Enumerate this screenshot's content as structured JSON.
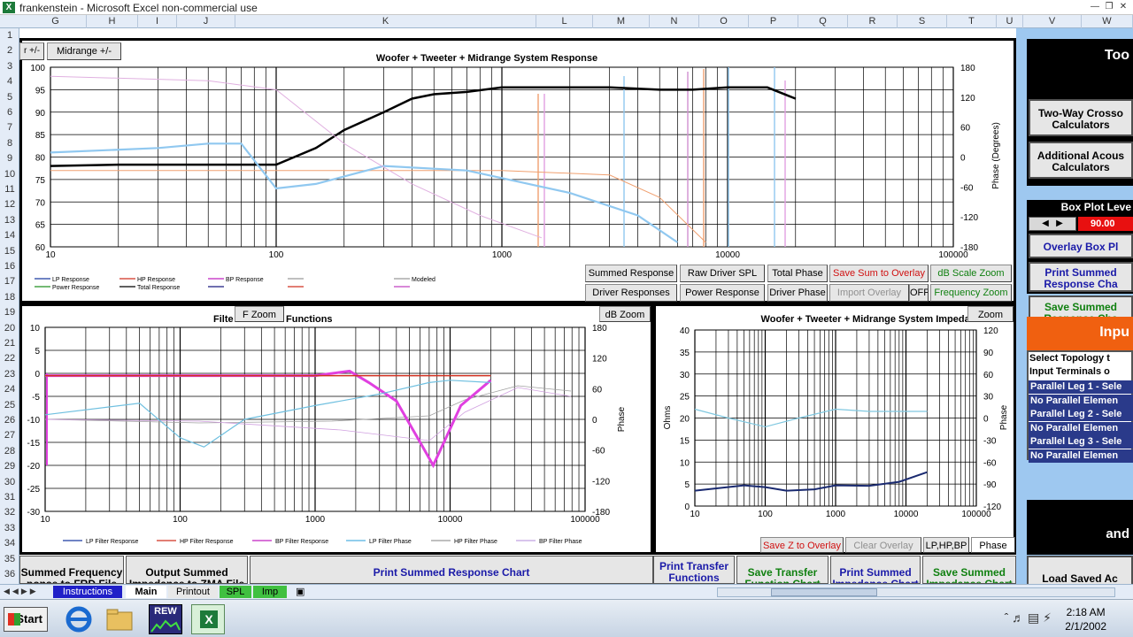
{
  "window": {
    "title": "frankenstein - Microsoft Excel non-commercial use",
    "icon": "excel-icon"
  },
  "columns": [
    "G",
    "H",
    "I",
    "J",
    "K",
    "L",
    "M",
    "N",
    "O",
    "P",
    "Q",
    "R",
    "S",
    "T",
    "U",
    "V",
    "W"
  ],
  "rows": [
    "1",
    "2",
    "3",
    "4",
    "5",
    "6",
    "7",
    "8",
    "9",
    "10",
    "11",
    "12",
    "13",
    "14",
    "15",
    "16",
    "17",
    "18",
    "19",
    "20",
    "21",
    "22",
    "23",
    "24",
    "25",
    "26",
    "27",
    "28",
    "29",
    "30",
    "31",
    "32",
    "33",
    "34",
    "35",
    "36"
  ],
  "top_chart": {
    "title": "Woofer + Tweeter + Midrange  System Response",
    "y_left_ticks": [
      "100",
      "95",
      "90",
      "85",
      "80",
      "75",
      "70",
      "65",
      "60"
    ],
    "y_right_ticks": [
      "180",
      "120",
      "60",
      "0",
      "-60",
      "-120",
      "-180"
    ],
    "y_right_label": "Phase (Degrees)",
    "x_ticks": [
      "10",
      "100",
      "1000",
      "10000",
      "100000"
    ],
    "legend": [
      "LP Response",
      "HP Response",
      "BP Response",
      "",
      "Modeled",
      "Power Response",
      "Total Response",
      "",
      "",
      ""
    ],
    "corner_buttons": [
      "r +/-",
      "Midrange  +/-"
    ],
    "buttons_row1": [
      "Summed Response",
      "Raw Driver SPL",
      "Total Phase",
      "Save Sum to Overlay",
      "dB Scale Zoom"
    ],
    "buttons_row2": [
      "Driver Responses",
      "Power Response",
      "Driver Phase",
      "Import Overlay",
      "OFF",
      "Frequency Zoom"
    ]
  },
  "filter_chart": {
    "title_left": "Filte",
    "title_right": "Functions",
    "zoom_buttons": [
      "F Zoom",
      "dB Zoom"
    ],
    "y_left_ticks": [
      "10",
      "5",
      "0",
      "-5",
      "-10",
      "-15",
      "-20",
      "-25",
      "-30"
    ],
    "y_right_ticks": [
      "180",
      "120",
      "60",
      "0",
      "-60",
      "-120",
      "-180"
    ],
    "y_right_label": "Phase",
    "x_ticks": [
      "10",
      "100",
      "1000",
      "10000",
      "100000"
    ],
    "legend": [
      "LP Filter Response",
      "HP Filter Response",
      "BP Filter Response",
      "LP Filter Phase",
      "HP Filter Phase",
      "BP Filter Phase"
    ]
  },
  "impedance_chart": {
    "title": "Woofer + Tweeter + Midrange  System Impedan",
    "zoom_button": "Zoom",
    "y_left_ticks": [
      "40",
      "35",
      "30",
      "25",
      "20",
      "15",
      "10",
      "5",
      "0"
    ],
    "y_left_label": "Ohms",
    "y_right_ticks": [
      "120",
      "90",
      "60",
      "30",
      "0",
      "-30",
      "-60",
      "-90",
      "-120"
    ],
    "y_right_label": "Phase",
    "x_ticks": [
      "10",
      "100",
      "1000",
      "10000",
      "100000"
    ],
    "buttons": [
      "Save Z to Overlay",
      "Clear Overlay",
      "LP,HP,BP",
      "Phase"
    ]
  },
  "sidebar": {
    "header": "Too",
    "items": [
      "Two-Way Crosso Calculators",
      "Additional Acous Calculators"
    ],
    "box_plot_label": "Box Plot Leve",
    "box_plot_value": "90.00",
    "overlay_btn": "Overlay Box Pl",
    "print_btn": "Print Summed Response Cha",
    "save_btn": "Save Summed Response Cha",
    "input_header": "Inpu",
    "select_topology": "Select Topology t",
    "input_terminals": "Input Terminals o",
    "legs": [
      "Parallel Leg 1 - Sele",
      "No Parallel Elemen",
      "Parallel Leg 2 - Sele",
      "No Parallel Elemen",
      "Parallel Leg 3 - Sele",
      "No Parallel Elemen"
    ],
    "black_box_text": "and",
    "load_saved": "Load Saved Ac"
  },
  "bottom_buttons": [
    {
      "label": "Summed Frequency ponse to FRD File",
      "style": "black"
    },
    {
      "label": "Output Summed Impedance to ZMA File",
      "style": "black"
    },
    {
      "label": "Print Summed Response Chart",
      "style": "blue"
    },
    {
      "label": "Print Transfer Functions",
      "style": "blue"
    },
    {
      "label": "Save Transfer Function Chart",
      "style": "green"
    },
    {
      "label": "Print Summed Impedance Chart",
      "style": "blue"
    },
    {
      "label": "Save Summed Impedance Chart",
      "style": "green"
    }
  ],
  "sheet_tabs": [
    "Instructions",
    "Main",
    "Printout",
    "SPL",
    "Imp"
  ],
  "taskbar": {
    "start": "Start",
    "apps": [
      "internet-explorer-icon",
      "folder-icon",
      "rew-icon",
      "excel-icon"
    ],
    "rew_label": "REW",
    "time": "2:18 AM",
    "date": "2/1/2002"
  },
  "chart_data": [
    {
      "type": "line",
      "title": "Woofer + Tweeter + Midrange  System Response",
      "xscale": "log",
      "xlim": [
        10,
        100000
      ],
      "ylim": [
        60,
        100
      ],
      "y2lim": [
        -180,
        180
      ],
      "series": [
        {
          "color": "#000000",
          "x": [
            10,
            20,
            50,
            100,
            150,
            200,
            300,
            400,
            500,
            700,
            1000,
            1500,
            2000,
            3000,
            5000,
            7000,
            10000,
            15000,
            20000
          ],
          "values": [
            78,
            78.3,
            78.3,
            78.3,
            82,
            86,
            90,
            93,
            94,
            94.5,
            95.5,
            95.5,
            95.5,
            95.5,
            95,
            95,
            95.5,
            95.5,
            93
          ]
        },
        {
          "color": "#f0a070",
          "x": [
            10,
            100,
            1000,
            3000,
            5000,
            8000
          ],
          "values": [
            77,
            77,
            77,
            76,
            71,
            61
          ]
        },
        {
          "color": "#90c8f0",
          "x": [
            10,
            30,
            50,
            70,
            100,
            150,
            300,
            700,
            2000,
            4000,
            6000
          ],
          "values": [
            81,
            82,
            83,
            83,
            73,
            74,
            78,
            77,
            72,
            67,
            61
          ]
        },
        {
          "color": "#e0b0e0",
          "x": [
            10,
            50,
            100,
            200,
            400,
            800,
            1500
          ],
          "values": [
            98,
            97,
            95,
            83,
            74,
            67,
            62
          ]
        }
      ]
    },
    {
      "type": "line",
      "title": "",
      "xscale": "log",
      "xlim": [
        10,
        100000
      ],
      "ylim": [
        -30,
        10
      ],
      "series": [
        {
          "name": "BP Filter Response",
          "color": "#e040e0",
          "x": [
            10,
            100,
            1000,
            1800,
            2500,
            4000,
            6000,
            7500,
            9000,
            12000,
            20000
          ],
          "values": [
            -0.5,
            -0.5,
            -0.5,
            0.5,
            -2,
            -6,
            -15,
            -20,
            -15,
            -7,
            -1.5
          ]
        },
        {
          "name": "HP Filter Response",
          "color": "#d03020",
          "x": [
            10,
            100,
            1000,
            10000,
            20000
          ],
          "values": [
            -0.5,
            -0.5,
            -0.5,
            -0.5,
            -0.5
          ]
        },
        {
          "name": "LP Filter Phase",
          "color": "#70c0e0",
          "x": [
            10,
            50,
            100,
            150,
            300,
            1000,
            3000,
            7000,
            10000,
            20000
          ],
          "values": [
            -9,
            -6.5,
            -14,
            -16,
            -10,
            -7,
            -4.5,
            -2,
            -1.5,
            -2
          ]
        }
      ]
    },
    {
      "type": "line",
      "title": "Woofer + Tweeter + Midrange  System Impedan",
      "xscale": "log",
      "xlim": [
        10,
        100000
      ],
      "ylim": [
        0,
        40
      ],
      "series": [
        {
          "color": "#1a2a70",
          "x": [
            10,
            50,
            100,
            200,
            500,
            1000,
            3000,
            8000,
            20000
          ],
          "values": [
            3.5,
            4.7,
            4.3,
            3.5,
            3.8,
            4.7,
            4.6,
            5.5,
            7.7
          ]
        },
        {
          "color": "#80c8e0",
          "x": [
            10,
            30,
            100,
            300,
            1000,
            3000,
            10000,
            20000
          ],
          "values": [
            22,
            20,
            18,
            20,
            22,
            21.5,
            21.5,
            21.5
          ]
        }
      ]
    }
  ]
}
